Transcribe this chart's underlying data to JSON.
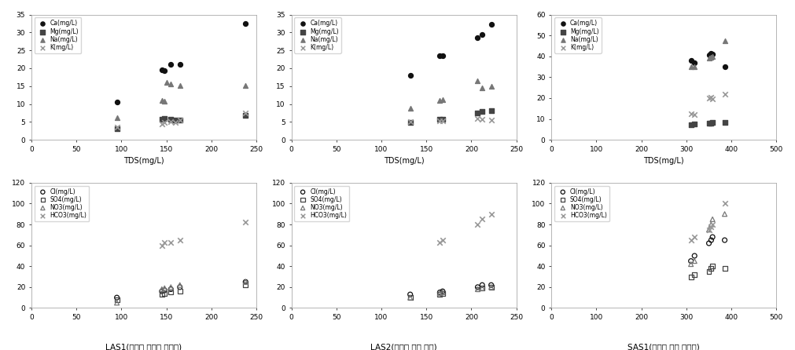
{
  "panels": [
    {
      "title": "LAS1(서운면 신토리 하천수)",
      "top": {
        "xlim": [
          0,
          250
        ],
        "ylim": [
          0,
          35
        ],
        "xticks": [
          0,
          50,
          100,
          150,
          200,
          250
        ],
        "yticks": [
          0,
          5,
          10,
          15,
          20,
          25,
          30,
          35
        ],
        "xlabel": "TDS(mg/L)",
        "Ca": [
          [
            95,
            10.5
          ],
          [
            145,
            19.5
          ],
          [
            148,
            19.3
          ],
          [
            155,
            21.0
          ],
          [
            165,
            21.0
          ],
          [
            238,
            32.5
          ]
        ],
        "Mg": [
          [
            95,
            3.2
          ],
          [
            145,
            5.8
          ],
          [
            148,
            6.0
          ],
          [
            155,
            5.8
          ],
          [
            160,
            5.5
          ],
          [
            165,
            5.5
          ],
          [
            238,
            6.8
          ]
        ],
        "Na": [
          [
            95,
            6.2
          ],
          [
            145,
            11.0
          ],
          [
            148,
            10.8
          ],
          [
            150,
            16.0
          ],
          [
            155,
            15.5
          ],
          [
            165,
            15.2
          ],
          [
            238,
            15.2
          ]
        ],
        "K": [
          [
            95,
            3.5
          ],
          [
            145,
            4.5
          ],
          [
            148,
            4.8
          ],
          [
            155,
            5.0
          ],
          [
            160,
            4.8
          ],
          [
            165,
            5.5
          ],
          [
            238,
            7.5
          ]
        ]
      },
      "bottom": {
        "xlim": [
          0,
          250
        ],
        "ylim": [
          0,
          120
        ],
        "xticks": [
          0,
          50,
          100,
          150,
          200,
          250
        ],
        "yticks": [
          0,
          20,
          40,
          60,
          80,
          100,
          120
        ],
        "xlabel": "TDS(mg/L)",
        "Cl": [
          [
            95,
            10.0
          ],
          [
            145,
            16.0
          ],
          [
            148,
            17.0
          ],
          [
            155,
            18.0
          ],
          [
            165,
            20.0
          ],
          [
            238,
            25.0
          ]
        ],
        "SO4": [
          [
            95,
            8.0
          ],
          [
            145,
            13.0
          ],
          [
            148,
            14.0
          ],
          [
            155,
            15.0
          ],
          [
            165,
            16.0
          ],
          [
            238,
            22.0
          ]
        ],
        "NO3": [
          [
            95,
            5.0
          ],
          [
            145,
            18.0
          ],
          [
            148,
            19.0
          ],
          [
            155,
            20.0
          ],
          [
            165,
            22.0
          ],
          [
            238,
            25.0
          ]
        ],
        "HCO3": [
          [
            145,
            60.0
          ],
          [
            148,
            63.0
          ],
          [
            155,
            63.0
          ],
          [
            165,
            65.0
          ],
          [
            238,
            82.0
          ]
        ]
      }
    },
    {
      "title": "LAS2(대덕면 죽리 한천)",
      "top": {
        "xlim": [
          0,
          250
        ],
        "ylim": [
          0,
          35
        ],
        "xticks": [
          0,
          50,
          100,
          150,
          200,
          250
        ],
        "yticks": [
          0,
          5,
          10,
          15,
          20,
          25,
          30,
          35
        ],
        "xlabel": "TDS(mg/L)",
        "Ca": [
          [
            132,
            18.0
          ],
          [
            165,
            23.5
          ],
          [
            168,
            23.5
          ],
          [
            207,
            28.5
          ],
          [
            212,
            29.5
          ],
          [
            222,
            32.3
          ]
        ],
        "Mg": [
          [
            132,
            4.8
          ],
          [
            165,
            5.8
          ],
          [
            168,
            5.8
          ],
          [
            207,
            7.5
          ],
          [
            212,
            8.0
          ],
          [
            222,
            8.2
          ]
        ],
        "Na": [
          [
            132,
            8.8
          ],
          [
            165,
            11.0
          ],
          [
            168,
            11.2
          ],
          [
            207,
            16.5
          ],
          [
            212,
            14.5
          ],
          [
            222,
            15.0
          ]
        ],
        "K": [
          [
            132,
            5.0
          ],
          [
            165,
            5.2
          ],
          [
            168,
            5.2
          ],
          [
            207,
            6.0
          ],
          [
            212,
            5.8
          ],
          [
            222,
            5.5
          ]
        ]
      },
      "bottom": {
        "xlim": [
          0,
          250
        ],
        "ylim": [
          0,
          120
        ],
        "xticks": [
          0,
          50,
          100,
          150,
          200,
          250
        ],
        "yticks": [
          0,
          20,
          40,
          60,
          80,
          100,
          120
        ],
        "xlabel": "TDS(mg/L)",
        "Cl": [
          [
            132,
            13.0
          ],
          [
            165,
            15.0
          ],
          [
            168,
            16.0
          ],
          [
            207,
            20.0
          ],
          [
            212,
            22.0
          ],
          [
            222,
            22.0
          ]
        ],
        "SO4": [
          [
            132,
            10.0
          ],
          [
            165,
            13.0
          ],
          [
            168,
            14.0
          ],
          [
            207,
            18.0
          ],
          [
            212,
            19.0
          ],
          [
            222,
            20.0
          ]
        ],
        "NO3": [
          [
            132,
            10.0
          ],
          [
            165,
            14.0
          ],
          [
            168,
            15.0
          ],
          [
            207,
            18.0
          ],
          [
            212,
            19.0
          ],
          [
            222,
            20.0
          ]
        ],
        "HCO3": [
          [
            165,
            63.0
          ],
          [
            168,
            65.0
          ],
          [
            207,
            80.0
          ],
          [
            212,
            85.0
          ],
          [
            222,
            90.0
          ]
        ]
      }
    },
    {
      "title": "SAS1(대덕면 죽리 방류수)",
      "top": {
        "xlim": [
          0,
          500
        ],
        "ylim": [
          0,
          60
        ],
        "xticks": [
          0,
          100,
          200,
          300,
          400,
          500
        ],
        "yticks": [
          0,
          10,
          20,
          30,
          40,
          50,
          60
        ],
        "xlabel": "TDS(mg/L)",
        "Ca": [
          [
            310,
            38.0
          ],
          [
            318,
            37.0
          ],
          [
            350,
            40.5
          ],
          [
            355,
            41.5
          ],
          [
            358,
            41.0
          ],
          [
            385,
            35.0
          ]
        ],
        "Mg": [
          [
            310,
            7.2
          ],
          [
            318,
            7.5
          ],
          [
            350,
            7.8
          ],
          [
            355,
            8.0
          ],
          [
            358,
            8.2
          ],
          [
            385,
            8.5
          ]
        ],
        "Na": [
          [
            310,
            35.0
          ],
          [
            318,
            35.0
          ],
          [
            350,
            39.0
          ],
          [
            355,
            39.5
          ],
          [
            358,
            40.0
          ],
          [
            385,
            47.5
          ]
        ],
        "K": [
          [
            310,
            12.5
          ],
          [
            318,
            12.0
          ],
          [
            350,
            20.0
          ],
          [
            355,
            20.5
          ],
          [
            358,
            19.5
          ],
          [
            385,
            22.0
          ]
        ]
      },
      "bottom": {
        "xlim": [
          0,
          500
        ],
        "ylim": [
          0,
          120
        ],
        "xticks": [
          0,
          100,
          200,
          300,
          400,
          500
        ],
        "yticks": [
          0,
          20,
          40,
          60,
          80,
          100,
          120
        ],
        "xlabel": "TDS(mg/L)",
        "Cl": [
          [
            310,
            45.0
          ],
          [
            318,
            50.0
          ],
          [
            350,
            62.0
          ],
          [
            355,
            65.0
          ],
          [
            358,
            68.0
          ],
          [
            385,
            65.0
          ]
        ],
        "SO4": [
          [
            310,
            30.0
          ],
          [
            318,
            32.0
          ],
          [
            350,
            35.0
          ],
          [
            355,
            38.0
          ],
          [
            358,
            40.0
          ],
          [
            385,
            38.0
          ]
        ],
        "NO3": [
          [
            310,
            42.0
          ],
          [
            318,
            45.0
          ],
          [
            350,
            75.0
          ],
          [
            355,
            80.0
          ],
          [
            358,
            85.0
          ],
          [
            385,
            90.0
          ]
        ],
        "HCO3": [
          [
            310,
            65.0
          ],
          [
            318,
            68.0
          ],
          [
            350,
            75.0
          ],
          [
            355,
            78.0
          ],
          [
            358,
            80.0
          ],
          [
            385,
            100.0
          ]
        ]
      }
    }
  ],
  "cation_markers": {
    "Ca": "o",
    "Mg": "s",
    "Na": "^",
    "K": "x"
  },
  "anion_markers": {
    "Cl": "o",
    "SO4": "s",
    "NO3": "^",
    "HCO3": "x"
  },
  "cation_colors": {
    "Ca": "#111111",
    "Mg": "#444444",
    "Na": "#777777",
    "K": "#999999"
  },
  "anion_colors": {
    "Cl": "#111111",
    "SO4": "#444444",
    "NO3": "#777777",
    "HCO3": "#999999"
  },
  "legend_cations": [
    "Ca(mg/L)",
    "Mg(mg/L)",
    "Na(mg/L)",
    "K(mg/L)"
  ],
  "legend_anions": [
    "Cl(mg/L)",
    "SO4(mg/L)",
    "NO3(mg/L)",
    "HCO3(mg/L)"
  ]
}
